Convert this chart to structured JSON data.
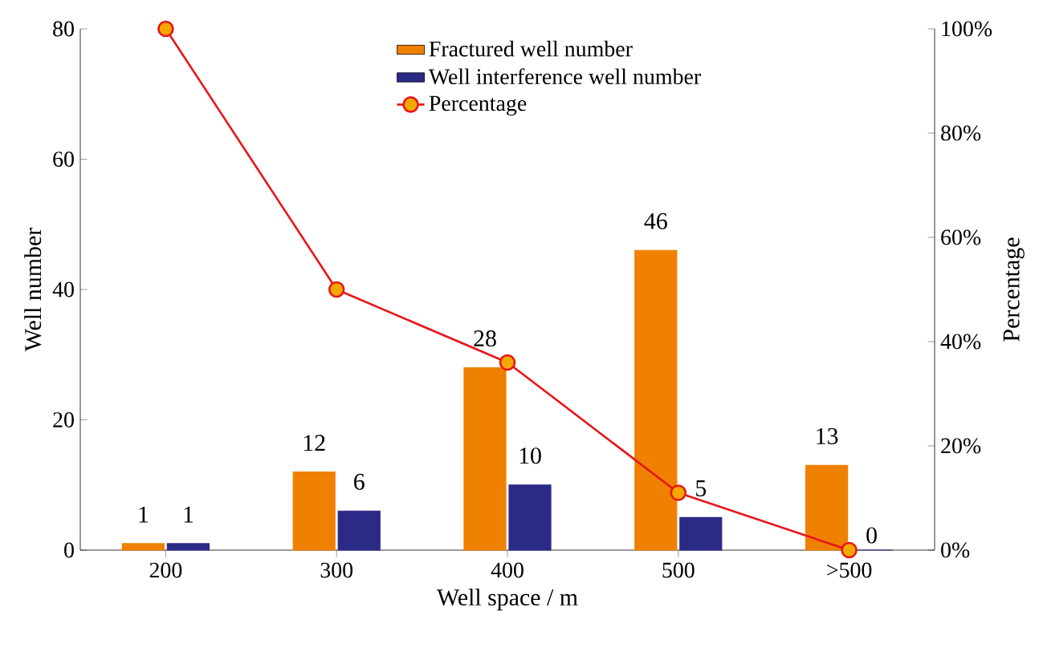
{
  "chart_data": {
    "type": "bar",
    "xlabel": "Well space / m",
    "ylabel": "Well number",
    "y2label": "Percentage",
    "categories": [
      "200",
      "300",
      "400",
      "500",
      ">500"
    ],
    "ylim": [
      0,
      80
    ],
    "yticks": [
      0,
      20,
      40,
      60,
      80
    ],
    "y2lim": [
      0,
      100
    ],
    "y2ticks": [
      {
        "value": 0,
        "label": "0%"
      },
      {
        "value": 20,
        "label": "20%"
      },
      {
        "value": 40,
        "label": "40%"
      },
      {
        "value": 60,
        "label": "60%"
      },
      {
        "value": 80,
        "label": "80%"
      },
      {
        "value": 100,
        "label": "100%"
      }
    ],
    "legend": "top",
    "grid": false,
    "series": [
      {
        "name": "Fractured well number",
        "color": "#f08000",
        "values": [
          1,
          12,
          28,
          46,
          13
        ],
        "value_labels": [
          "1",
          "12",
          "28",
          "46",
          "13"
        ]
      },
      {
        "name": "Well interference well number",
        "color": "#2b2a87",
        "values": [
          1,
          6,
          10,
          5,
          0
        ],
        "value_labels": [
          "1",
          "6",
          "10",
          "5",
          "0"
        ]
      },
      {
        "name": "Percentage",
        "type": "line",
        "axis": "y2",
        "color": "#e8161b",
        "marker": "circle",
        "line_style": "solid",
        "values": [
          100,
          50,
          36,
          11,
          0
        ]
      }
    ]
  }
}
